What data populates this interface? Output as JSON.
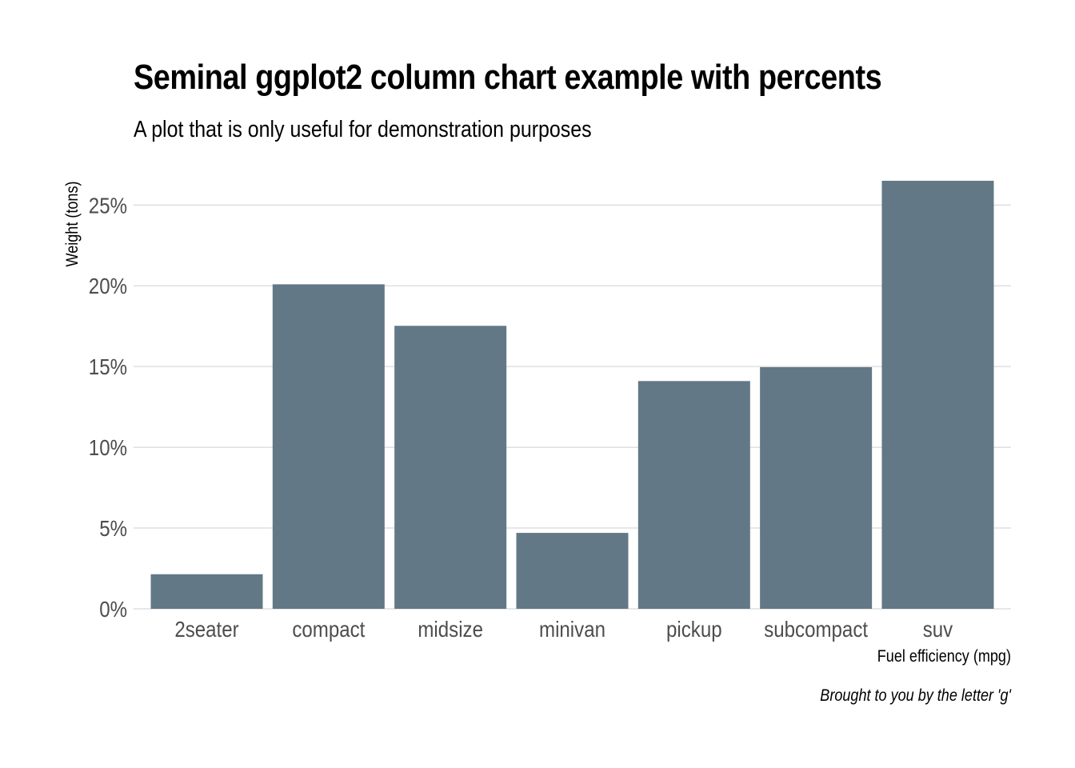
{
  "chart_data": {
    "type": "bar",
    "title": "Seminal ggplot2 column chart example with percents",
    "subtitle": "A plot that is only useful for demonstration purposes",
    "xlabel": "Fuel efficiency (mpg)",
    "ylabel": "Weight (tons)",
    "caption": "Brought to you by the letter 'g'",
    "categories": [
      "2seater",
      "compact",
      "midsize",
      "minivan",
      "pickup",
      "subcompact",
      "suv"
    ],
    "values": [
      0.0214,
      0.2009,
      0.1752,
      0.047,
      0.141,
      0.1496,
      0.265
    ],
    "ylim": [
      0,
      0.27
    ],
    "yticks": [
      0,
      0.05,
      0.1,
      0.15,
      0.2,
      0.25
    ],
    "ytick_labels": [
      "0%",
      "5%",
      "10%",
      "15%",
      "20%",
      "25%"
    ],
    "grid": "horizontal-major",
    "bar_color": "#627887",
    "grid_color": "#cfcfcf"
  }
}
